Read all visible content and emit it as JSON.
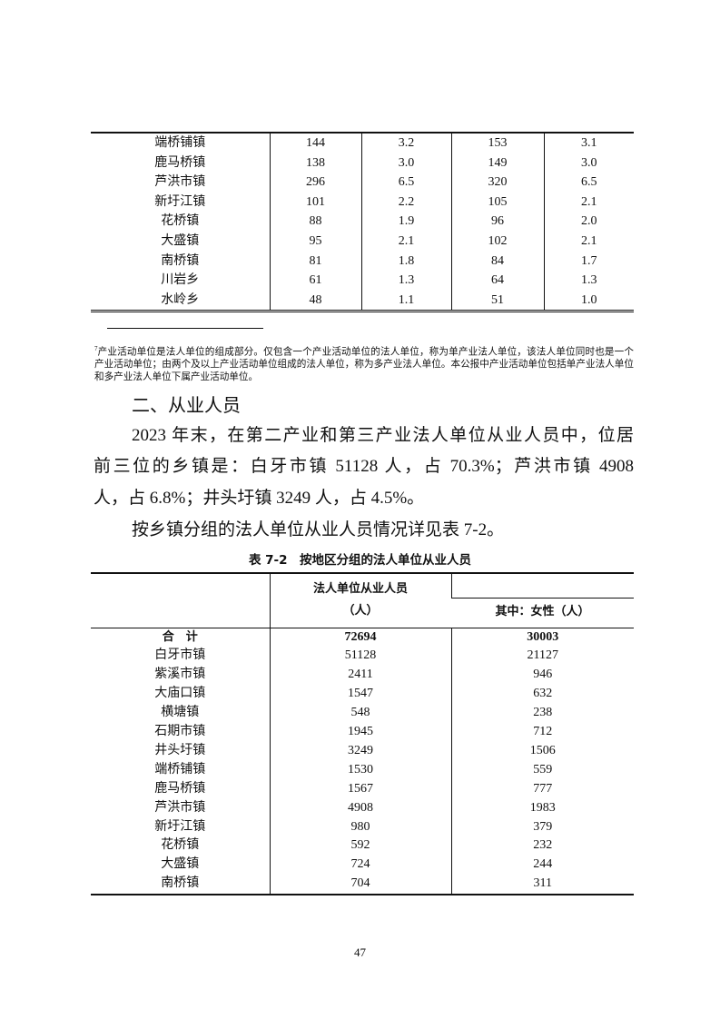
{
  "table1": {
    "rows": [
      [
        "端桥铺镇",
        "144",
        "3.2",
        "153",
        "3.1"
      ],
      [
        "鹿马桥镇",
        "138",
        "3.0",
        "149",
        "3.0"
      ],
      [
        "芦洪市镇",
        "296",
        "6.5",
        "320",
        "6.5"
      ],
      [
        "新圩江镇",
        "101",
        "2.2",
        "105",
        "2.1"
      ],
      [
        "花桥镇",
        "88",
        "1.9",
        "96",
        "2.0"
      ],
      [
        "大盛镇",
        "95",
        "2.1",
        "102",
        "2.1"
      ],
      [
        "南桥镇",
        "81",
        "1.8",
        "84",
        "1.7"
      ],
      [
        "川岩乡",
        "61",
        "1.3",
        "64",
        "1.3"
      ],
      [
        "水岭乡",
        "48",
        "1.1",
        "51",
        "1.0"
      ]
    ]
  },
  "footnote": {
    "marker": "7",
    "text": "产业活动单位是法人单位的组成部分。仅包含一个产业活动单位的法人单位，称为单产业法人单位，该法人单位同时也是一个产业活动单位；由两个及以上产业活动单位组成的法人单位，称为多产业法人单位。本公报中产业活动单位包括单产业法人单位和多产业法人单位下属产业活动单位。"
  },
  "section": {
    "heading": "二、从业人员",
    "paragraph_lines": [
      "2023 年末，在第二产业和第三产业法人单位从业人员中，位居",
      "前三位的乡镇是：白牙市镇 51128 人，占 70.3%；芦洪市镇 4908",
      "人，占 6.8%；井头圩镇 3249 人，占 4.5%。"
    ],
    "paragraph2": "按乡镇分组的法人单位从业人员情况详见表 7-2。"
  },
  "table2": {
    "caption": "表 7-2　按地区分组的法人单位从业人员",
    "header_col1_line1": "法人单位从业人员",
    "header_col1_line2": "（人）",
    "header_col2": "其中：女性（人）",
    "total": [
      "合　计",
      "72694",
      "30003"
    ],
    "rows": [
      [
        "白牙市镇",
        "51128",
        "21127"
      ],
      [
        "紫溪市镇",
        "2411",
        "946"
      ],
      [
        "大庙口镇",
        "1547",
        "632"
      ],
      [
        "横塘镇",
        "548",
        "238"
      ],
      [
        "石期市镇",
        "1945",
        "712"
      ],
      [
        "井头圩镇",
        "3249",
        "1506"
      ],
      [
        "端桥铺镇",
        "1530",
        "559"
      ],
      [
        "鹿马桥镇",
        "1567",
        "777"
      ],
      [
        "芦洪市镇",
        "4908",
        "1983"
      ],
      [
        "新圩江镇",
        "980",
        "379"
      ],
      [
        "花桥镇",
        "592",
        "232"
      ],
      [
        "大盛镇",
        "724",
        "244"
      ],
      [
        "南桥镇",
        "704",
        "311"
      ]
    ]
  },
  "page_number": "47"
}
